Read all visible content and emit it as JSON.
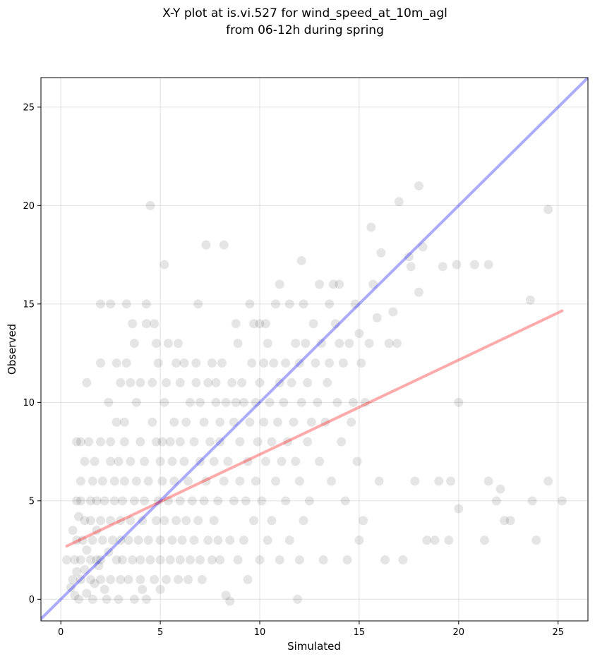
{
  "chart_data": {
    "type": "scatter",
    "title": "X-Y plot at is.vi.527 for wind_speed_at_10m_agl",
    "subtitle": "from 06-12h during spring",
    "xlabel": "Simulated",
    "ylabel": "Observed",
    "xlim": [
      -1.0,
      26.5
    ],
    "ylim": [
      -1.1,
      26.5
    ],
    "xticks": [
      0,
      5,
      10,
      15,
      20,
      25
    ],
    "yticks": [
      0,
      5,
      10,
      15,
      20,
      25
    ],
    "grid": true,
    "colors": {
      "points": "#000000",
      "one_to_one_line": "#0000ff",
      "fit_line": "#ff0000",
      "grid": "#cccccc"
    },
    "reference_lines": [
      {
        "kind": "one-to-one",
        "x": [
          -1.0,
          26.5
        ],
        "y": [
          -1.0,
          26.5
        ]
      },
      {
        "kind": "linear-fit",
        "x": [
          0.3,
          25.2
        ],
        "y": [
          2.7,
          14.65
        ]
      }
    ],
    "points": [
      [
        0.3,
        2
      ],
      [
        0.5,
        0.6
      ],
      [
        0.6,
        1
      ],
      [
        0.6,
        3.5
      ],
      [
        0.7,
        0.2
      ],
      [
        0.7,
        2
      ],
      [
        0.8,
        1.4
      ],
      [
        0.8,
        3
      ],
      [
        0.8,
        5
      ],
      [
        0.8,
        8
      ],
      [
        0.9,
        4.2
      ],
      [
        0.9,
        0
      ],
      [
        1,
        2
      ],
      [
        1,
        6
      ],
      [
        1,
        8
      ],
      [
        1,
        1
      ],
      [
        1,
        5
      ],
      [
        1.1,
        3
      ],
      [
        1.2,
        1.5
      ],
      [
        1.2,
        4
      ],
      [
        1.2,
        7
      ],
      [
        1.3,
        0.3
      ],
      [
        1.3,
        2.5
      ],
      [
        1.3,
        11
      ],
      [
        1.4,
        8
      ],
      [
        1.5,
        1
      ],
      [
        1.5,
        2
      ],
      [
        1.5,
        4
      ],
      [
        1.5,
        5
      ],
      [
        1.6,
        0
      ],
      [
        1.6,
        3
      ],
      [
        1.6,
        6
      ],
      [
        1.7,
        7
      ],
      [
        1.7,
        0.8
      ],
      [
        1.8,
        2
      ],
      [
        1.8,
        3.5
      ],
      [
        1.8,
        5
      ],
      [
        1.9,
        1.7
      ],
      [
        2,
        12
      ],
      [
        2,
        8
      ],
      [
        2,
        15
      ],
      [
        2,
        4
      ],
      [
        2,
        1
      ],
      [
        2,
        2
      ],
      [
        2.1,
        3
      ],
      [
        2.1,
        6
      ],
      [
        2.2,
        5
      ],
      [
        2.2,
        0.5
      ],
      [
        2.3,
        0
      ],
      [
        2.4,
        2.4
      ],
      [
        2.4,
        10
      ],
      [
        2.5,
        15
      ],
      [
        2.5,
        4
      ],
      [
        2.5,
        8
      ],
      [
        2.5,
        7
      ],
      [
        2.5,
        1
      ],
      [
        2.6,
        3
      ],
      [
        2.7,
        5
      ],
      [
        2.7,
        6
      ],
      [
        2.8,
        12
      ],
      [
        2.8,
        2
      ],
      [
        2.8,
        9
      ],
      [
        2.9,
        0
      ],
      [
        2.9,
        7
      ],
      [
        3,
        3
      ],
      [
        3,
        1
      ],
      [
        3,
        4
      ],
      [
        3,
        11
      ],
      [
        3.1,
        2
      ],
      [
        3.1,
        5
      ],
      [
        3.2,
        6
      ],
      [
        3.2,
        8
      ],
      [
        3.2,
        9
      ],
      [
        3.3,
        15
      ],
      [
        3.3,
        12
      ],
      [
        3.4,
        1
      ],
      [
        3.4,
        3
      ],
      [
        3.5,
        11
      ],
      [
        3.5,
        4
      ],
      [
        3.5,
        7
      ],
      [
        3.6,
        14
      ],
      [
        3.6,
        2
      ],
      [
        3.7,
        13
      ],
      [
        3.7,
        5
      ],
      [
        3.7,
        0
      ],
      [
        3.8,
        6
      ],
      [
        3.8,
        10
      ],
      [
        3.9,
        3
      ],
      [
        4,
        1
      ],
      [
        4,
        8
      ],
      [
        4,
        2
      ],
      [
        4,
        11
      ],
      [
        4.1,
        0.5
      ],
      [
        4.1,
        4
      ],
      [
        4.2,
        7
      ],
      [
        4.2,
        5
      ],
      [
        4.3,
        15
      ],
      [
        4.3,
        0
      ],
      [
        4.3,
        14
      ],
      [
        4.4,
        3
      ],
      [
        4.4,
        6
      ],
      [
        4.5,
        20
      ],
      [
        4.5,
        2
      ],
      [
        4.6,
        9
      ],
      [
        4.6,
        11
      ],
      [
        4.7,
        14
      ],
      [
        4.7,
        1
      ],
      [
        4.8,
        4
      ],
      [
        4.8,
        8
      ],
      [
        4.8,
        13
      ],
      [
        4.9,
        12
      ],
      [
        4.9,
        5
      ],
      [
        5,
        2
      ],
      [
        5,
        7
      ],
      [
        5,
        0.5
      ],
      [
        5,
        3
      ],
      [
        5.1,
        6
      ],
      [
        5.1,
        8
      ],
      [
        5.2,
        4
      ],
      [
        5.2,
        17
      ],
      [
        5.2,
        10
      ],
      [
        5.3,
        1
      ],
      [
        5.3,
        11
      ],
      [
        5.4,
        5
      ],
      [
        5.4,
        13
      ],
      [
        5.5,
        2
      ],
      [
        5.5,
        8
      ],
      [
        5.6,
        7
      ],
      [
        5.6,
        3
      ],
      [
        5.7,
        6
      ],
      [
        5.7,
        9
      ],
      [
        5.8,
        4
      ],
      [
        5.8,
        12
      ],
      [
        5.9,
        1
      ],
      [
        5.9,
        13
      ],
      [
        6,
        2
      ],
      [
        6,
        5
      ],
      [
        6,
        8
      ],
      [
        6,
        11
      ],
      [
        6.1,
        3
      ],
      [
        6.2,
        7
      ],
      [
        6.2,
        12
      ],
      [
        6.3,
        4
      ],
      [
        6.3,
        9
      ],
      [
        6.4,
        6
      ],
      [
        6.4,
        1
      ],
      [
        6.5,
        10
      ],
      [
        6.5,
        2
      ],
      [
        6.6,
        5
      ],
      [
        6.7,
        8
      ],
      [
        6.7,
        3
      ],
      [
        6.8,
        11
      ],
      [
        6.8,
        12
      ],
      [
        6.9,
        15
      ],
      [
        6.9,
        4
      ],
      [
        7,
        7
      ],
      [
        7,
        2
      ],
      [
        7,
        10
      ],
      [
        7.1,
        1
      ],
      [
        7.2,
        9
      ],
      [
        7.2,
        5
      ],
      [
        7.3,
        18
      ],
      [
        7.3,
        6
      ],
      [
        7.4,
        3
      ],
      [
        7.4,
        11
      ],
      [
        7.5,
        8
      ],
      [
        7.6,
        2
      ],
      [
        7.6,
        12
      ],
      [
        7.7,
        4
      ],
      [
        7.7,
        7
      ],
      [
        7.8,
        10
      ],
      [
        7.8,
        11
      ],
      [
        7.9,
        5
      ],
      [
        7.9,
        3
      ],
      [
        8,
        9
      ],
      [
        8,
        8
      ],
      [
        8,
        2
      ],
      [
        8.1,
        12
      ],
      [
        8.2,
        18
      ],
      [
        8.2,
        6
      ],
      [
        8.3,
        10
      ],
      [
        8.3,
        0.2
      ],
      [
        8.4,
        7
      ],
      [
        8.5,
        3
      ],
      [
        8.5,
        -0.1
      ],
      [
        8.6,
        11
      ],
      [
        8.7,
        9
      ],
      [
        8.7,
        5
      ],
      [
        8.8,
        14
      ],
      [
        8.8,
        10
      ],
      [
        8.9,
        2
      ],
      [
        8.9,
        13
      ],
      [
        9,
        8
      ],
      [
        9,
        6
      ],
      [
        9.1,
        11
      ],
      [
        9.2,
        3
      ],
      [
        9.2,
        10
      ],
      [
        9.3,
        5
      ],
      [
        9.4,
        7
      ],
      [
        9.4,
        1
      ],
      [
        9.5,
        15
      ],
      [
        9.5,
        9
      ],
      [
        9.6,
        12
      ],
      [
        9.7,
        14
      ],
      [
        9.7,
        4
      ],
      [
        9.8,
        10
      ],
      [
        9.8,
        6
      ],
      [
        9.9,
        8
      ],
      [
        10,
        14
      ],
      [
        10,
        2
      ],
      [
        10,
        11
      ],
      [
        10.1,
        5
      ],
      [
        10.2,
        12
      ],
      [
        10.2,
        9
      ],
      [
        10.3,
        7
      ],
      [
        10.3,
        14
      ],
      [
        10.4,
        13
      ],
      [
        10.4,
        3
      ],
      [
        10.5,
        10
      ],
      [
        10.6,
        8
      ],
      [
        10.6,
        4
      ],
      [
        10.7,
        12
      ],
      [
        10.8,
        15
      ],
      [
        10.8,
        6
      ],
      [
        10.9,
        9
      ],
      [
        11,
        11
      ],
      [
        11,
        2
      ],
      [
        11,
        16
      ],
      [
        11.1,
        7
      ],
      [
        11.2,
        10
      ],
      [
        11.3,
        12
      ],
      [
        11.3,
        5
      ],
      [
        11.4,
        8
      ],
      [
        11.5,
        15
      ],
      [
        11.5,
        3
      ],
      [
        11.6,
        11
      ],
      [
        11.7,
        9
      ],
      [
        11.8,
        13
      ],
      [
        11.8,
        7
      ],
      [
        11.9,
        0
      ],
      [
        12,
        6
      ],
      [
        12,
        12
      ],
      [
        12,
        2
      ],
      [
        12.1,
        17.2
      ],
      [
        12.1,
        10
      ],
      [
        12.2,
        4
      ],
      [
        12.2,
        15
      ],
      [
        12.3,
        13
      ],
      [
        12.4,
        8
      ],
      [
        12.4,
        11
      ],
      [
        12.5,
        5
      ],
      [
        12.6,
        9
      ],
      [
        12.7,
        14
      ],
      [
        12.8,
        12
      ],
      [
        12.9,
        10
      ],
      [
        13,
        16
      ],
      [
        13,
        7
      ],
      [
        13.1,
        13
      ],
      [
        13.2,
        2
      ],
      [
        13.3,
        9
      ],
      [
        13.4,
        11
      ],
      [
        13.5,
        15
      ],
      [
        13.5,
        12
      ],
      [
        13.6,
        6
      ],
      [
        13.7,
        16
      ],
      [
        13.8,
        14
      ],
      [
        13.9,
        10
      ],
      [
        14,
        13
      ],
      [
        14,
        16
      ],
      [
        14.1,
        8
      ],
      [
        14.2,
        12
      ],
      [
        14.3,
        5
      ],
      [
        14.4,
        2
      ],
      [
        14.5,
        13
      ],
      [
        14.6,
        9
      ],
      [
        14.7,
        10
      ],
      [
        14.8,
        15
      ],
      [
        14.9,
        7
      ],
      [
        15,
        3
      ],
      [
        15,
        13.5
      ],
      [
        15.1,
        12
      ],
      [
        15.2,
        4
      ],
      [
        15.3,
        10
      ],
      [
        15.5,
        13
      ],
      [
        15.6,
        18.9
      ],
      [
        15.7,
        16
      ],
      [
        15.9,
        14.3
      ],
      [
        16,
        6
      ],
      [
        16.1,
        17.6
      ],
      [
        16.3,
        2
      ],
      [
        16.5,
        13
      ],
      [
        16.7,
        14.6
      ],
      [
        16.9,
        13
      ],
      [
        17,
        20.2
      ],
      [
        17.2,
        2
      ],
      [
        17.5,
        17.4
      ],
      [
        17.6,
        16.9
      ],
      [
        17.8,
        6
      ],
      [
        18,
        21
      ],
      [
        18,
        15.6
      ],
      [
        18.2,
        17.9
      ],
      [
        18.4,
        3
      ],
      [
        18.8,
        3
      ],
      [
        19,
        6
      ],
      [
        19.2,
        16.9
      ],
      [
        19.5,
        3
      ],
      [
        19.6,
        6
      ],
      [
        19.9,
        17
      ],
      [
        20,
        4.6
      ],
      [
        20,
        10
      ],
      [
        20.8,
        17
      ],
      [
        21.3,
        3
      ],
      [
        21.5,
        17
      ],
      [
        21.5,
        6
      ],
      [
        21.9,
        5
      ],
      [
        22.1,
        5.6
      ],
      [
        22.3,
        4
      ],
      [
        22.6,
        4
      ],
      [
        23.6,
        15.2
      ],
      [
        23.7,
        5
      ],
      [
        23.9,
        3
      ],
      [
        24.5,
        19.8
      ],
      [
        24.5,
        6
      ],
      [
        25.2,
        5
      ]
    ]
  }
}
